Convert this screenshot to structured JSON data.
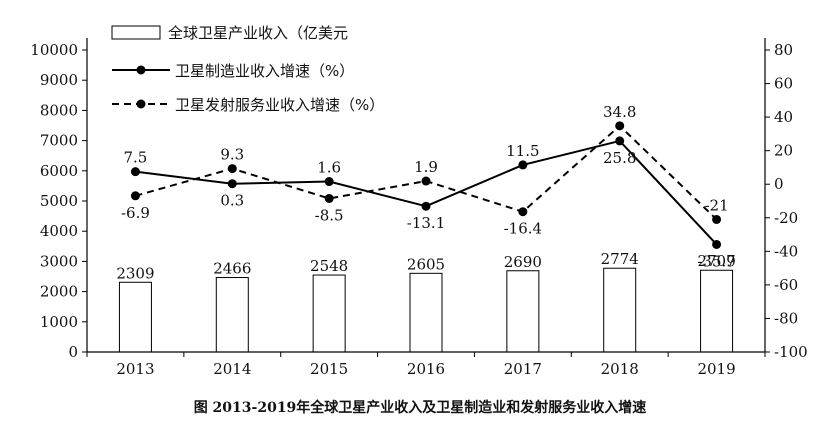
{
  "chart_data": {
    "type": "bar",
    "categories": [
      "2013",
      "2014",
      "2015",
      "2016",
      "2017",
      "2018",
      "2019"
    ],
    "bars": {
      "name": "全球卫星产业收入（亿美元",
      "values": [
        2309,
        2466,
        2548,
        2605,
        2690,
        2774,
        2707
      ],
      "axis": "left"
    },
    "lines": [
      {
        "name": "卫星制造业收入增速（%）",
        "values": [
          7.5,
          0.3,
          1.6,
          -13.1,
          11.5,
          25.8,
          -35.9
        ],
        "labels": [
          "7.5",
          "0.3",
          "1.6",
          "-13.1",
          "11.5",
          "25.8",
          "-35.9"
        ],
        "style": "solid",
        "axis": "right"
      },
      {
        "name": "卫星发射服务业收入增速（%）",
        "values": [
          -6.9,
          9.3,
          -8.5,
          1.9,
          -16.4,
          34.8,
          -21
        ],
        "labels": [
          "-6.9",
          "9.3",
          "-8.5",
          "1.9",
          "-16.4",
          "34.8",
          "-21"
        ],
        "style": "dashed",
        "axis": "right"
      }
    ],
    "y_left": {
      "min": 0,
      "max": 10000,
      "step": 1000
    },
    "y_right": {
      "min": -100,
      "max": 80,
      "step": 20
    },
    "caption": "图  2013-2019年全球卫星产业收入及卫星制造业和发射服务业收入增速",
    "legend_position": "top-left"
  }
}
